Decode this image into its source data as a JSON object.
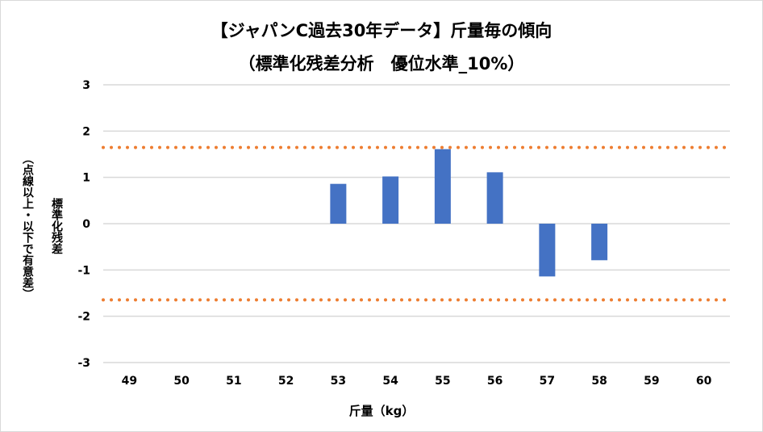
{
  "chart_data": {
    "type": "bar",
    "title": "【ジャパンC過去30年データ】斤量毎の傾向",
    "subtitle": "（標準化残差分析　優位水準_10%）",
    "xlabel": "斤量（kg）",
    "ylabel": "標準化残差",
    "ylabel_note": "（点線以上・以下で有意差）",
    "categories": [
      "49",
      "50",
      "51",
      "52",
      "53",
      "54",
      "55",
      "56",
      "57",
      "58",
      "59",
      "60"
    ],
    "values": [
      null,
      null,
      null,
      null,
      0.86,
      1.02,
      1.61,
      1.11,
      -1.14,
      -0.79,
      null,
      null
    ],
    "yticks": [
      "3",
      "2",
      "1",
      "0",
      "-1",
      "-2",
      "-3"
    ],
    "ylim": [
      -3,
      3
    ],
    "threshold_lines": [
      1.645,
      -1.645
    ],
    "grid": true,
    "colors": {
      "bar": "#4472c4",
      "threshold": "#ed7d31",
      "grid": "#d9d9d9"
    }
  }
}
